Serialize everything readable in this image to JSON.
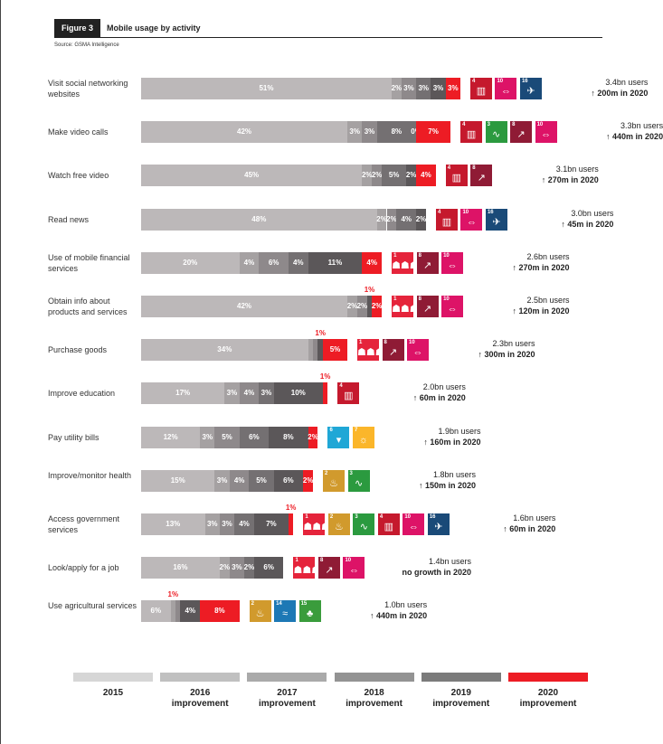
{
  "figure": {
    "tag": "Figure 3",
    "title": "Mobile usage by activity",
    "source": "Source: GSMA Intelligence"
  },
  "colors": {
    "bars": [
      "#bcb8b9",
      "#a5a1a2",
      "#8e898b",
      "#747072",
      "#5b5759",
      "#ed1c24"
    ],
    "legend": [
      "#d6d6d6",
      "#c0c0c0",
      "#aaaaaa",
      "#939393",
      "#7b7b7b",
      "#ed1c24"
    ],
    "sdg": {
      "1": "#e5243b",
      "2": "#d19a2d",
      "3": "#2b9a3f",
      "4": "#c5192d",
      "6": "#1fa7d6",
      "7": "#fbb62a",
      "8": "#8f1b35",
      "10": "#dd1367",
      "14": "#1d78b5",
      "15": "#3a9c3c",
      "16": "#1a4a78"
    }
  },
  "sdg_icons": {
    "1": "person-group-icon",
    "2": "food-bowl-icon",
    "3": "heartbeat-icon",
    "4": "book-icon",
    "6": "water-drop-icon",
    "7": "sun-icon",
    "8": "growth-chart-icon",
    "10": "equality-icon",
    "14": "fish-icon",
    "15": "tree-icon",
    "16": "dove-icon"
  },
  "chart_data": {
    "type": "bar",
    "orientation": "horizontal-stacked",
    "title": "Mobile usage by activity",
    "unit": "%",
    "series": [
      {
        "name": "2015"
      },
      {
        "name": "2016 improvement"
      },
      {
        "name": "2017 improvement"
      },
      {
        "name": "2018 improvement"
      },
      {
        "name": "2019 improvement"
      },
      {
        "name": "2020 improvement"
      }
    ],
    "legend_placement": "bottom",
    "grid": false,
    "rows": [
      {
        "category": "Visit social networking websites",
        "values": [
          51,
          2,
          3,
          3,
          3,
          3
        ],
        "labels": [
          "51%",
          "2%",
          "3%",
          "3%",
          "3%",
          "3%"
        ],
        "sdgs": [
          "4",
          "10",
          "16"
        ],
        "users": "3.4bn users",
        "growth": "↑ 200m in 2020"
      },
      {
        "category": "Make video calls",
        "values": [
          42,
          3,
          3,
          8,
          0,
          7
        ],
        "labels": [
          "42%",
          "3%",
          "3%",
          "8%",
          "0%",
          "7%"
        ],
        "sdgs": [
          "4",
          "3",
          "8",
          "10"
        ],
        "users": "3.3bn users",
        "growth": "↑ 440m in 2020"
      },
      {
        "category": "Watch free video",
        "values": [
          45,
          2,
          2,
          5,
          2,
          4
        ],
        "labels": [
          "45%",
          "2%",
          "2%",
          "5%",
          "2%",
          "4%"
        ],
        "sdgs": [
          "4",
          "8"
        ],
        "users": "3.1bn users",
        "growth": "↑ 270m in 2020"
      },
      {
        "category": "Read news",
        "values": [
          48,
          2,
          2,
          4,
          2,
          0
        ],
        "labels": [
          "48%",
          "2%",
          "2%",
          "4%",
          "2%",
          ""
        ],
        "sdgs": [
          "4",
          "10",
          "16"
        ],
        "users": "3.0bn users",
        "growth": "↑ 45m in 2020"
      },
      {
        "category": "Use of mobile financial services",
        "values": [
          20,
          4,
          6,
          4,
          11,
          4
        ],
        "labels": [
          "20%",
          "4%",
          "6%",
          "4%",
          "11%",
          "4%"
        ],
        "sdgs": [
          "1",
          "8",
          "10"
        ],
        "users": "2.6bn users",
        "growth": "↑ 270m in 2020"
      },
      {
        "category": "Obtain info about products and services",
        "values": [
          42,
          2,
          2,
          0,
          1,
          2
        ],
        "labels": [
          "42%",
          "2%",
          "2%",
          "",
          "1%",
          "2%"
        ],
        "sdgs": [
          "1",
          "8",
          "10"
        ],
        "users": "2.5bn users",
        "growth": "↑ 120m in 2020"
      },
      {
        "category": "Purchase goods",
        "values": [
          34,
          1,
          1,
          0,
          1,
          5
        ],
        "labels": [
          "34%",
          "",
          "",
          "",
          "1%",
          "5%"
        ],
        "sdgs": [
          "1",
          "8",
          "10"
        ],
        "users": "2.3bn users",
        "growth": "↑ 300m in 2020"
      },
      {
        "category": "Improve education",
        "values": [
          17,
          3,
          4,
          3,
          10,
          1
        ],
        "labels": [
          "17%",
          "3%",
          "4%",
          "3%",
          "10%",
          "1%"
        ],
        "sdgs": [
          "4"
        ],
        "users": "2.0bn users",
        "growth": "↑ 60m in 2020"
      },
      {
        "category": "Pay utility bills",
        "values": [
          12,
          3,
          5,
          6,
          8,
          2
        ],
        "labels": [
          "12%",
          "3%",
          "5%",
          "6%",
          "8%",
          "2%"
        ],
        "sdgs": [
          "6",
          "7"
        ],
        "users": "1.9bn users",
        "growth": "↑ 160m in 2020"
      },
      {
        "category": "Improve/monitor health",
        "values": [
          15,
          3,
          4,
          5,
          6,
          2
        ],
        "labels": [
          "15%",
          "3%",
          "4%",
          "5%",
          "6%",
          "2%"
        ],
        "sdgs": [
          "2",
          "3"
        ],
        "users": "1.8bn users",
        "growth": "↑ 150m in 2020"
      },
      {
        "category": "Access government services",
        "values": [
          13,
          3,
          3,
          4,
          7,
          1
        ],
        "labels": [
          "13%",
          "3%",
          "3%",
          "4%",
          "7%",
          "1%"
        ],
        "sdgs": [
          "1",
          "2",
          "3",
          "4",
          "10",
          "16"
        ],
        "users": "1.6bn users",
        "growth": "↑ 60m in 2020"
      },
      {
        "category": "Look/apply for a job",
        "values": [
          16,
          2,
          3,
          2,
          6,
          0
        ],
        "labels": [
          "16%",
          "2%",
          "3%",
          "2%",
          "6%",
          ""
        ],
        "sdgs": [
          "1",
          "8",
          "10"
        ],
        "users": "1.4bn users",
        "growth": "no growth in 2020"
      },
      {
        "category": "Use agricultural services",
        "values": [
          6,
          1,
          1,
          0,
          4,
          8
        ],
        "labels": [
          "6%",
          "1%",
          "",
          "",
          "4%",
          "8%"
        ],
        "sdgs": [
          "2",
          "14",
          "15"
        ],
        "users": "1.0bn users",
        "growth": "↑ 440m in 2020"
      }
    ],
    "legend": [
      {
        "year": "2015",
        "sub": ""
      },
      {
        "year": "2016",
        "sub": "improvement"
      },
      {
        "year": "2017",
        "sub": "improvement"
      },
      {
        "year": "2018",
        "sub": "improvement"
      },
      {
        "year": "2019",
        "sub": "improvement"
      },
      {
        "year": "2020",
        "sub": "improvement"
      }
    ]
  }
}
